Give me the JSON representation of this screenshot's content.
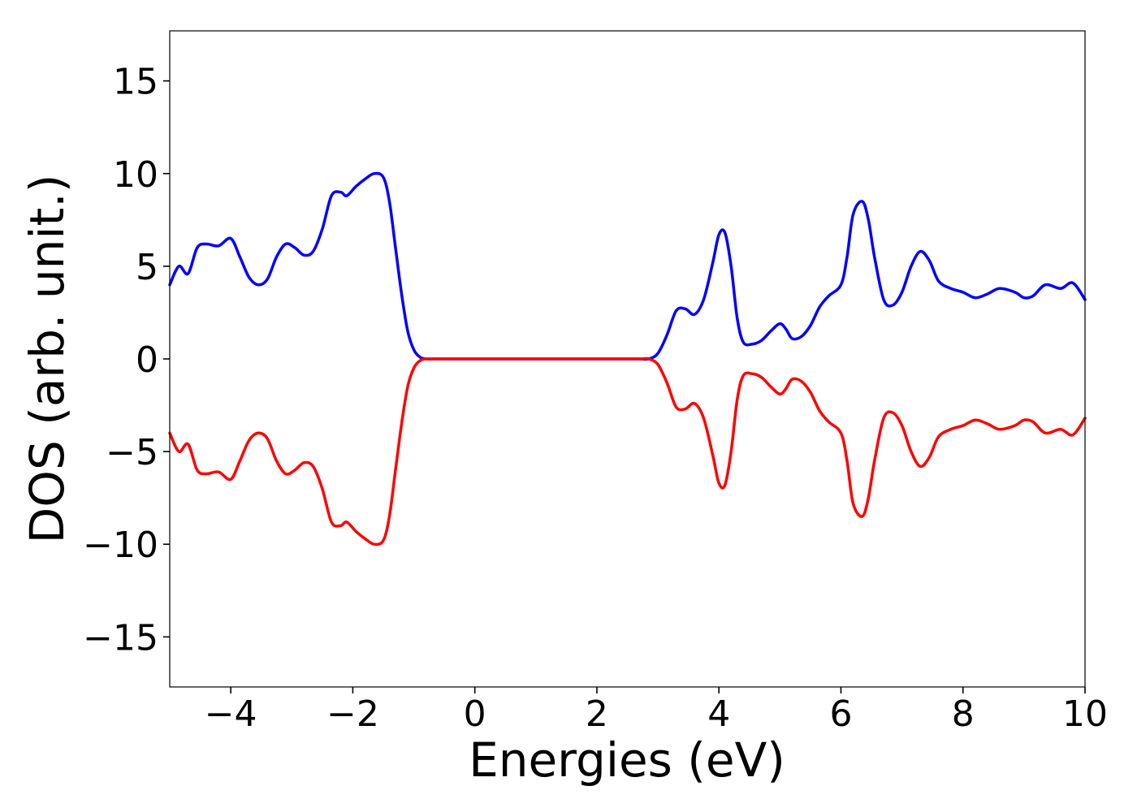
{
  "chart_data": {
    "type": "line",
    "title": "",
    "xlabel": "Energies (eV)",
    "ylabel": "DOS (arb. unit.)",
    "xlim": [
      -5,
      10
    ],
    "ylim": [
      -17.7,
      17.7
    ],
    "xticks": [
      -4,
      -2,
      0,
      2,
      4,
      6,
      8,
      10
    ],
    "xtick_labels": [
      "−4",
      "−2",
      "0",
      "2",
      "4",
      "6",
      "8",
      "10"
    ],
    "yticks": [
      15,
      10,
      5,
      0,
      -5,
      -10,
      -15
    ],
    "ytick_labels": [
      "15",
      "10",
      "5",
      "0",
      "−5",
      "−10",
      "−15"
    ],
    "grid": false,
    "legend": "none",
    "series": [
      {
        "color": "#0000ff",
        "x": [
          -5.0,
          -4.85,
          -4.7,
          -4.55,
          -4.4,
          -4.2,
          -4.0,
          -3.85,
          -3.7,
          -3.55,
          -3.4,
          -3.25,
          -3.1,
          -2.95,
          -2.8,
          -2.65,
          -2.5,
          -2.35,
          -2.2,
          -2.1,
          -1.95,
          -1.8,
          -1.65,
          -1.5,
          -1.4,
          -1.3,
          -1.2,
          -1.1,
          -1.0,
          -0.9,
          -0.8,
          -0.7,
          -0.6,
          -0.5,
          -0.4,
          0.0,
          0.5,
          1.0,
          1.5,
          2.0,
          2.5,
          2.7,
          2.85,
          3.0,
          3.15,
          3.3,
          3.45,
          3.6,
          3.75,
          3.9,
          4.0,
          4.1,
          4.2,
          4.3,
          4.4,
          4.55,
          4.7,
          4.85,
          5.0,
          5.1,
          5.2,
          5.35,
          5.5,
          5.65,
          5.8,
          6.0,
          6.1,
          6.2,
          6.35,
          6.45,
          6.55,
          6.7,
          6.85,
          7.0,
          7.15,
          7.3,
          7.45,
          7.6,
          7.8,
          8.0,
          8.2,
          8.4,
          8.6,
          8.85,
          9.0,
          9.15,
          9.35,
          9.6,
          9.8,
          10.0
        ],
        "y": [
          4.0,
          5.0,
          4.6,
          6.0,
          6.2,
          6.1,
          6.5,
          5.5,
          4.4,
          4.0,
          4.3,
          5.5,
          6.2,
          6.0,
          5.6,
          5.8,
          7.0,
          8.8,
          9.0,
          8.8,
          9.3,
          9.7,
          10.0,
          9.8,
          8.5,
          6.0,
          3.5,
          1.5,
          0.5,
          0.1,
          0.0,
          0.0,
          0.0,
          0.0,
          0.0,
          0.0,
          0.0,
          0.0,
          0.0,
          0.0,
          0.0,
          0.0,
          0.0,
          0.3,
          1.3,
          2.6,
          2.7,
          2.4,
          3.2,
          5.2,
          6.7,
          6.8,
          5.0,
          2.2,
          0.9,
          0.8,
          1.0,
          1.5,
          1.9,
          1.6,
          1.1,
          1.2,
          1.8,
          2.8,
          3.4,
          4.0,
          5.5,
          7.8,
          8.5,
          7.5,
          5.5,
          3.2,
          2.9,
          3.6,
          5.0,
          5.8,
          5.3,
          4.2,
          3.8,
          3.6,
          3.3,
          3.5,
          3.8,
          3.6,
          3.3,
          3.4,
          4.0,
          3.8,
          4.1,
          3.2
        ]
      },
      {
        "color": "#ff0000",
        "x": [
          -5.0,
          -4.85,
          -4.7,
          -4.55,
          -4.4,
          -4.2,
          -4.0,
          -3.85,
          -3.7,
          -3.55,
          -3.4,
          -3.25,
          -3.1,
          -2.95,
          -2.8,
          -2.65,
          -2.5,
          -2.35,
          -2.2,
          -2.1,
          -1.95,
          -1.8,
          -1.65,
          -1.5,
          -1.4,
          -1.3,
          -1.2,
          -1.1,
          -1.0,
          -0.9,
          -0.8,
          -0.7,
          -0.6,
          -0.5,
          -0.4,
          0.0,
          0.5,
          1.0,
          1.5,
          2.0,
          2.5,
          2.7,
          2.85,
          3.0,
          3.15,
          3.3,
          3.45,
          3.6,
          3.75,
          3.9,
          4.0,
          4.1,
          4.2,
          4.3,
          4.4,
          4.55,
          4.7,
          4.85,
          5.0,
          5.1,
          5.2,
          5.35,
          5.5,
          5.65,
          5.8,
          6.0,
          6.1,
          6.2,
          6.35,
          6.45,
          6.55,
          6.7,
          6.85,
          7.0,
          7.15,
          7.3,
          7.45,
          7.6,
          7.8,
          8.0,
          8.2,
          8.4,
          8.6,
          8.85,
          9.0,
          9.15,
          9.35,
          9.6,
          9.8,
          10.0
        ],
        "y": [
          -4.0,
          -5.0,
          -4.6,
          -6.0,
          -6.2,
          -6.1,
          -6.5,
          -5.5,
          -4.4,
          -4.0,
          -4.3,
          -5.5,
          -6.2,
          -6.0,
          -5.6,
          -5.8,
          -7.0,
          -8.8,
          -9.0,
          -8.8,
          -9.3,
          -9.7,
          -10.0,
          -9.8,
          -8.5,
          -6.0,
          -3.5,
          -1.5,
          -0.5,
          -0.1,
          0.0,
          0.0,
          0.0,
          0.0,
          0.0,
          0.0,
          0.0,
          0.0,
          0.0,
          0.0,
          0.0,
          0.0,
          0.0,
          -0.3,
          -1.3,
          -2.6,
          -2.7,
          -2.4,
          -3.2,
          -5.2,
          -6.7,
          -6.8,
          -5.0,
          -2.2,
          -0.9,
          -0.8,
          -1.0,
          -1.5,
          -1.9,
          -1.6,
          -1.1,
          -1.2,
          -1.8,
          -2.8,
          -3.4,
          -4.0,
          -5.5,
          -7.8,
          -8.5,
          -7.5,
          -5.5,
          -3.2,
          -2.9,
          -3.6,
          -5.0,
          -5.8,
          -5.3,
          -4.2,
          -3.8,
          -3.6,
          -3.3,
          -3.5,
          -3.8,
          -3.6,
          -3.3,
          -3.4,
          -4.0,
          -3.8,
          -4.1,
          -3.2
        ]
      }
    ]
  }
}
